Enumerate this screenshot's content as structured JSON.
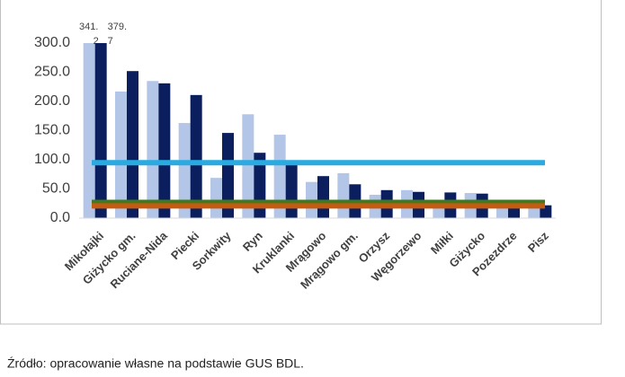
{
  "chart_data": {
    "type": "bar",
    "categories": [
      "Mikołajki",
      "Giżycko gm.",
      "Ruciane-Nida",
      "Piecki",
      "Sorkwity",
      "Ryn",
      "Kruklanki",
      "Mrągowo",
      "Mrągowo gm.",
      "Orzysz",
      "Węgorzewo",
      "Miłki",
      "Giżycko",
      "Pozezdrze",
      "Pisz"
    ],
    "series": [
      {
        "color": "#b4c6e7",
        "values": [
          341.2,
          217,
          235,
          163,
          69,
          178,
          143,
          62,
          77,
          40,
          48,
          25,
          43,
          20,
          28
        ],
        "value_labels": [
          "341.2",
          null,
          null,
          null,
          null,
          null,
          null,
          null,
          null,
          null,
          null,
          null,
          null,
          null,
          null
        ]
      },
      {
        "color": "#0b1f5e",
        "values": [
          379.7,
          252,
          231,
          211,
          146,
          112,
          92,
          72,
          58,
          48,
          45,
          44,
          42,
          28,
          22
        ],
        "value_labels": [
          "379.7",
          null,
          null,
          null,
          null,
          null,
          null,
          null,
          null,
          null,
          null,
          null,
          null,
          null,
          null
        ]
      }
    ],
    "reference_lines": [
      {
        "value": 95,
        "color": "#29abe2"
      },
      {
        "value": 27,
        "color": "#3f7a1f"
      },
      {
        "value": 21,
        "color": "#c55a11"
      }
    ],
    "ylim": [
      0,
      300
    ],
    "yticks": [
      {
        "value": 0,
        "label": "0.0"
      },
      {
        "value": 50,
        "label": "50.0"
      },
      {
        "value": 100,
        "label": "100.0"
      },
      {
        "value": 150,
        "label": "150.0"
      },
      {
        "value": 200,
        "label": "200.0"
      },
      {
        "value": 250,
        "label": "250.0"
      },
      {
        "value": 300,
        "label": "300.0"
      }
    ],
    "source": "Źródło: opracowanie własne na podstawie GUS BDL."
  }
}
